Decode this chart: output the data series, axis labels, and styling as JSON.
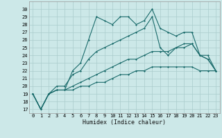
{
  "xlabel": "Humidex (Indice chaleur)",
  "bg_color": "#cce8e8",
  "grid_color": "#aacccc",
  "line_color": "#1a6b6b",
  "xlim": [
    -0.5,
    23.5
  ],
  "ylim": [
    16.5,
    31.0
  ],
  "xticks": [
    0,
    1,
    2,
    3,
    4,
    5,
    6,
    7,
    8,
    9,
    10,
    11,
    12,
    13,
    14,
    15,
    16,
    17,
    18,
    19,
    20,
    21,
    22,
    23
  ],
  "yticks": [
    17,
    18,
    19,
    20,
    21,
    22,
    23,
    24,
    25,
    26,
    27,
    28,
    29,
    30
  ],
  "line1_x": [
    0,
    1,
    2,
    3,
    4,
    5,
    6,
    7,
    8,
    9,
    10,
    11,
    12,
    13,
    14,
    15,
    16,
    17,
    18,
    19,
    20,
    21,
    22,
    23
  ],
  "line1_y": [
    19,
    17,
    19,
    19.5,
    19.5,
    22,
    23,
    26,
    29,
    28.5,
    28,
    29,
    29,
    28,
    28.5,
    30,
    27.5,
    27,
    26.5,
    27,
    27,
    24,
    24,
    22
  ],
  "line2_x": [
    0,
    1,
    2,
    3,
    4,
    5,
    6,
    7,
    8,
    9,
    10,
    11,
    12,
    13,
    14,
    15,
    16,
    17,
    18,
    19,
    20,
    21,
    22,
    23
  ],
  "line2_y": [
    19,
    17,
    19,
    20,
    20,
    21.5,
    22,
    23.5,
    24.5,
    25,
    25.5,
    26,
    26.5,
    27,
    27.5,
    29,
    25,
    24,
    25,
    25.5,
    25.5,
    24,
    23.5,
    22
  ],
  "line3_x": [
    0,
    1,
    2,
    3,
    4,
    5,
    6,
    7,
    8,
    9,
    10,
    11,
    12,
    13,
    14,
    15,
    16,
    17,
    18,
    19,
    20,
    21,
    22,
    23
  ],
  "line3_y": [
    19,
    17,
    19,
    19.5,
    19.5,
    20,
    20.5,
    21,
    21.5,
    22,
    22.5,
    23,
    23.5,
    23.5,
    24,
    24.5,
    24.5,
    24.5,
    25,
    25,
    25.5,
    24,
    23.5,
    22
  ],
  "line4_x": [
    0,
    1,
    2,
    3,
    4,
    5,
    6,
    7,
    8,
    9,
    10,
    11,
    12,
    13,
    14,
    15,
    16,
    17,
    18,
    19,
    20,
    21,
    22,
    23
  ],
  "line4_y": [
    19,
    17,
    19,
    19.5,
    19.5,
    19.5,
    20,
    20,
    20.5,
    20.5,
    21,
    21.5,
    21.5,
    22,
    22,
    22.5,
    22.5,
    22.5,
    22.5,
    22.5,
    22.5,
    22,
    22,
    22
  ]
}
